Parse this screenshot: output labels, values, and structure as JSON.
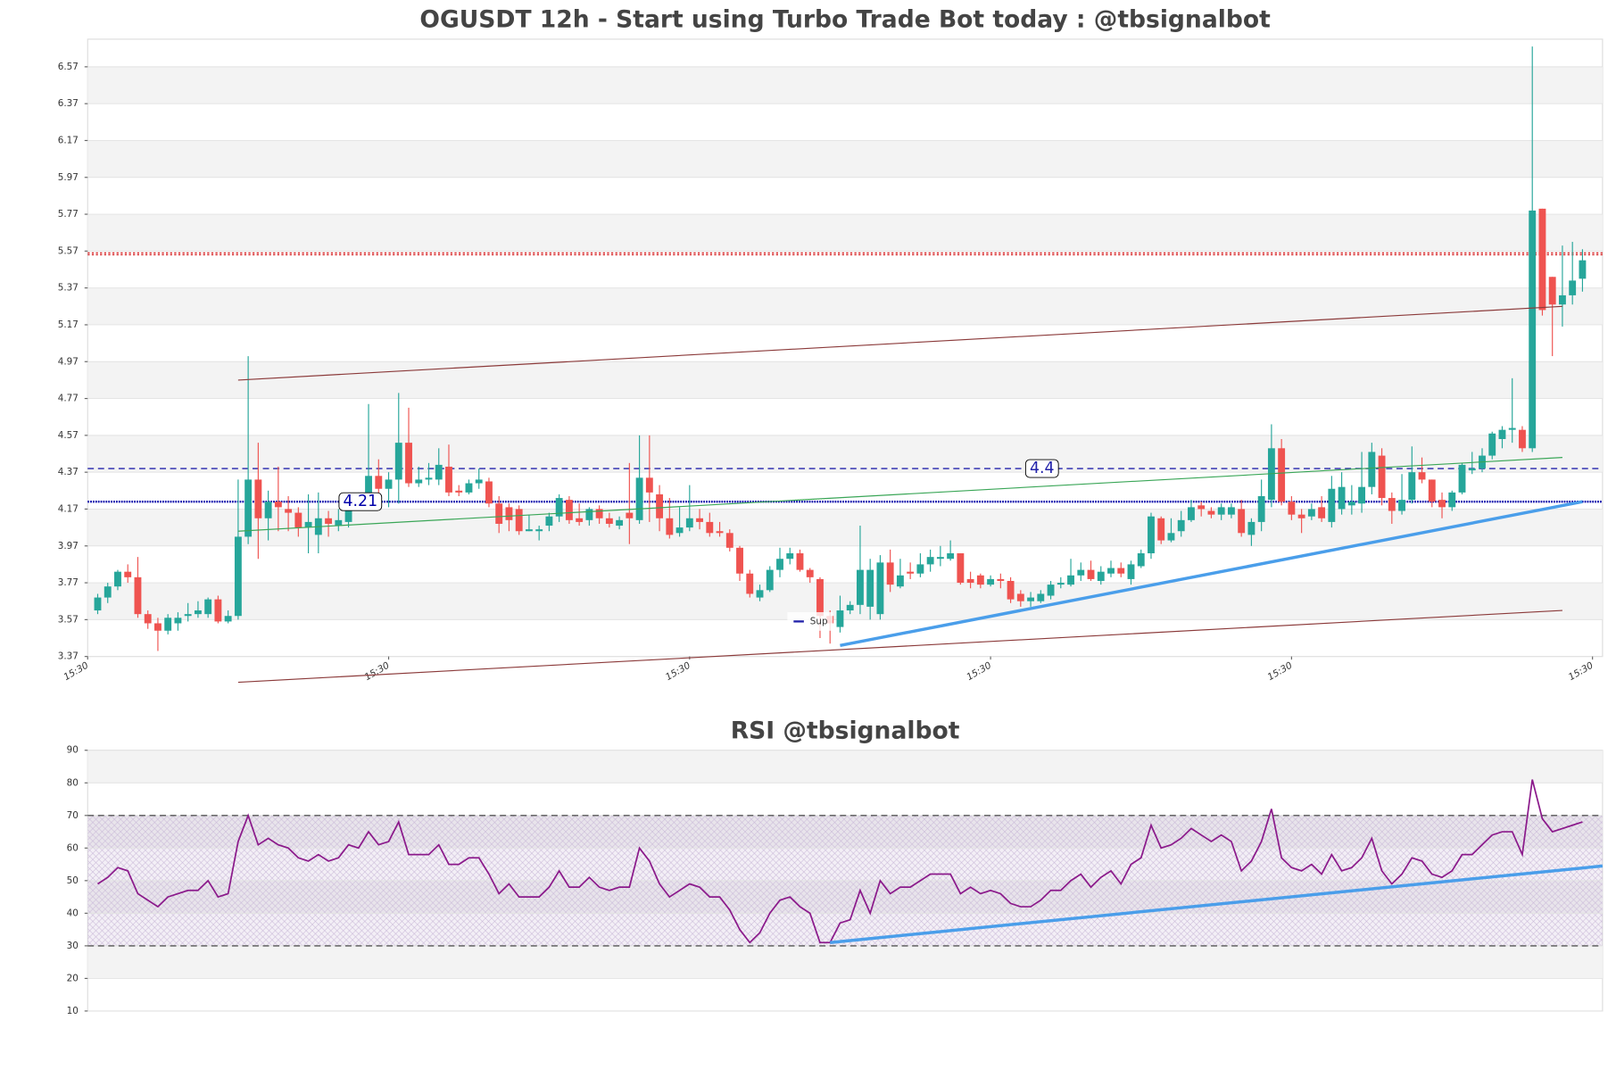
{
  "chart_data": [
    {
      "type": "candlestick",
      "title": "OGUSDT 12h - Start using Turbo Trade Bot today : @tbsignalbot",
      "xlim": [
        -1,
        150
      ],
      "xticks": [
        {
          "value": -1,
          "label": "15:30"
        },
        {
          "value": 29,
          "label": "15:30"
        },
        {
          "value": 59,
          "label": "15:30"
        },
        {
          "value": 89,
          "label": "15:30"
        },
        {
          "value": 119,
          "label": "15:30"
        },
        {
          "value": 149,
          "label": "15:30"
        }
      ],
      "ylim": [
        3.37,
        6.72
      ],
      "yticks": [
        3.37,
        3.57,
        3.77,
        3.97,
        4.17,
        4.37,
        4.57,
        4.77,
        4.97,
        5.17,
        5.37,
        5.57,
        5.77,
        5.97,
        6.17,
        6.37,
        6.57
      ],
      "grid": true,
      "up_color": "#26a69a",
      "down_color": "#ef5350",
      "open": [
        3.62,
        3.69,
        3.75,
        3.83,
        3.8,
        3.6,
        3.55,
        3.51,
        3.55,
        3.59,
        3.6,
        3.6,
        3.68,
        3.56,
        3.59,
        4.02,
        4.33,
        4.12,
        4.21,
        4.17,
        4.15,
        4.07,
        4.03,
        4.12,
        4.08,
        4.1,
        4.2,
        4.24,
        4.35,
        4.28,
        4.33,
        4.53,
        4.31,
        4.33,
        4.33,
        4.4,
        4.27,
        4.26,
        4.31,
        4.32,
        4.2,
        4.18,
        4.17,
        4.05,
        4.05,
        4.08,
        4.13,
        4.22,
        4.12,
        4.11,
        4.17,
        4.12,
        4.08,
        4.15,
        4.11,
        4.34,
        4.25,
        4.12,
        4.04,
        4.07,
        4.12,
        4.1,
        4.05,
        4.04,
        3.96,
        3.82,
        3.69,
        3.73,
        3.84,
        3.9,
        3.93,
        3.84,
        3.79,
        3.59,
        3.53,
        3.62,
        3.65,
        3.64,
        3.6,
        3.88,
        3.75,
        3.83,
        3.82,
        3.87,
        3.9,
        3.9,
        3.93,
        3.79,
        3.81,
        3.76,
        3.79,
        3.78,
        3.71,
        3.67,
        3.67,
        3.7,
        3.76,
        3.76,
        3.81,
        3.84,
        3.78,
        3.82,
        3.85,
        3.79,
        3.86,
        3.93,
        4.12,
        4.0,
        4.05,
        4.11,
        4.19,
        4.16,
        4.14,
        4.14,
        4.17,
        4.03,
        4.1,
        4.22,
        4.5,
        4.21,
        4.14,
        4.13,
        4.18,
        4.1,
        4.17,
        4.19,
        4.2,
        4.29,
        4.46,
        4.23,
        4.16,
        4.22,
        4.37,
        4.33,
        4.22,
        4.18,
        4.26,
        4.38,
        4.39,
        4.46,
        4.55,
        4.6,
        4.6,
        4.5,
        5.8,
        5.43,
        5.28,
        5.33,
        5.42
      ],
      "high": [
        3.71,
        3.77,
        3.84,
        3.87,
        3.91,
        3.62,
        3.58,
        3.6,
        3.61,
        3.66,
        3.67,
        3.69,
        3.7,
        3.62,
        4.33,
        5.0,
        4.53,
        4.27,
        4.4,
        4.24,
        4.18,
        4.25,
        4.26,
        4.16,
        4.17,
        4.23,
        4.26,
        4.74,
        4.44,
        4.37,
        4.8,
        4.72,
        4.4,
        4.42,
        4.5,
        4.52,
        4.3,
        4.33,
        4.39,
        4.34,
        4.24,
        4.2,
        4.19,
        4.14,
        4.08,
        4.15,
        4.25,
        4.24,
        4.2,
        4.18,
        4.19,
        4.15,
        4.13,
        4.42,
        4.57,
        4.57,
        4.3,
        4.23,
        4.18,
        4.3,
        4.17,
        4.15,
        4.1,
        4.06,
        3.97,
        3.84,
        3.76,
        3.86,
        3.96,
        3.96,
        3.95,
        3.85,
        3.8,
        3.62,
        3.7,
        3.67,
        4.08,
        3.9,
        3.92,
        3.95,
        3.9,
        3.88,
        3.93,
        3.95,
        3.97,
        4.0,
        3.93,
        3.83,
        3.82,
        3.81,
        3.82,
        3.8,
        3.73,
        3.72,
        3.73,
        3.78,
        3.8,
        3.9,
        3.88,
        3.89,
        3.86,
        3.89,
        3.88,
        3.89,
        3.95,
        4.15,
        4.13,
        4.12,
        4.16,
        4.22,
        4.21,
        4.18,
        4.2,
        4.2,
        4.22,
        4.12,
        4.33,
        4.63,
        4.55,
        4.24,
        4.17,
        4.2,
        4.24,
        4.35,
        4.37,
        4.3,
        4.48,
        4.53,
        4.5,
        4.26,
        4.36,
        4.51,
        4.45,
        4.33,
        4.26,
        4.27,
        4.42,
        4.48,
        4.5,
        4.59,
        4.62,
        4.88,
        4.62,
        6.68,
        5.8,
        5.43,
        5.6,
        5.62,
        5.58
      ],
      "low": [
        3.6,
        3.66,
        3.73,
        3.77,
        3.58,
        3.52,
        3.4,
        3.49,
        3.51,
        3.56,
        3.58,
        3.58,
        3.55,
        3.55,
        3.57,
        3.98,
        3.9,
        4.0,
        4.05,
        4.05,
        4.02,
        3.93,
        3.93,
        4.02,
        4.05,
        4.07,
        4.18,
        4.2,
        4.25,
        4.18,
        4.2,
        4.29,
        4.29,
        4.3,
        4.3,
        4.24,
        4.24,
        4.25,
        4.28,
        4.18,
        4.04,
        4.05,
        4.03,
        4.05,
        4.0,
        4.05,
        4.1,
        4.09,
        4.08,
        4.08,
        4.09,
        4.07,
        4.06,
        3.98,
        4.09,
        4.1,
        4.05,
        4.01,
        4.02,
        4.05,
        4.06,
        4.02,
        4.02,
        3.94,
        3.78,
        3.69,
        3.67,
        3.72,
        3.8,
        3.87,
        3.83,
        3.77,
        3.47,
        3.44,
        3.5,
        3.6,
        3.6,
        3.57,
        3.57,
        3.72,
        3.74,
        3.79,
        3.8,
        3.83,
        3.86,
        3.89,
        3.76,
        3.74,
        3.74,
        3.75,
        3.74,
        3.66,
        3.64,
        3.64,
        3.66,
        3.68,
        3.74,
        3.75,
        3.78,
        3.78,
        3.76,
        3.8,
        3.8,
        3.76,
        3.85,
        3.9,
        3.98,
        3.99,
        4.02,
        4.1,
        4.13,
        4.12,
        4.11,
        4.12,
        4.02,
        3.97,
        4.05,
        4.18,
        4.19,
        4.11,
        4.04,
        4.11,
        4.1,
        4.07,
        4.14,
        4.14,
        4.15,
        4.25,
        4.19,
        4.09,
        4.14,
        4.2,
        4.31,
        4.18,
        4.12,
        4.16,
        4.25,
        4.36,
        4.37,
        4.44,
        4.5,
        4.53,
        4.48,
        4.48,
        5.22,
        5.0,
        5.16,
        5.28,
        5.35
      ],
      "close": [
        3.69,
        3.75,
        3.83,
        3.8,
        3.6,
        3.55,
        3.51,
        3.58,
        3.58,
        3.6,
        3.62,
        3.68,
        3.56,
        3.59,
        4.02,
        4.33,
        4.12,
        4.21,
        4.18,
        4.15,
        4.07,
        4.1,
        4.12,
        4.09,
        4.11,
        4.2,
        4.24,
        4.35,
        4.28,
        4.33,
        4.53,
        4.31,
        4.33,
        4.34,
        4.41,
        4.26,
        4.26,
        4.31,
        4.33,
        4.2,
        4.09,
        4.11,
        4.05,
        4.06,
        4.06,
        4.13,
        4.23,
        4.11,
        4.1,
        4.17,
        4.12,
        4.09,
        4.11,
        4.12,
        4.34,
        4.26,
        4.12,
        4.03,
        4.07,
        4.12,
        4.1,
        4.04,
        4.04,
        3.96,
        3.82,
        3.71,
        3.73,
        3.84,
        3.9,
        3.93,
        3.84,
        3.8,
        3.59,
        3.55,
        3.62,
        3.65,
        3.84,
        3.84,
        3.88,
        3.76,
        3.81,
        3.82,
        3.87,
        3.91,
        3.91,
        3.93,
        3.77,
        3.77,
        3.76,
        3.79,
        3.78,
        3.68,
        3.67,
        3.69,
        3.71,
        3.76,
        3.77,
        3.81,
        3.84,
        3.79,
        3.83,
        3.85,
        3.82,
        3.87,
        3.93,
        4.13,
        4.0,
        4.04,
        4.11,
        4.18,
        4.17,
        4.14,
        4.18,
        4.18,
        4.04,
        4.1,
        4.24,
        4.5,
        4.21,
        4.14,
        4.12,
        4.17,
        4.12,
        4.28,
        4.29,
        4.21,
        4.29,
        4.48,
        4.23,
        4.16,
        4.22,
        4.37,
        4.33,
        4.21,
        4.18,
        4.26,
        4.41,
        4.39,
        4.46,
        4.58,
        4.6,
        4.61,
        4.5,
        5.79,
        5.25,
        5.28,
        5.33,
        5.41,
        5.52
      ],
      "levels": [
        {
          "value": 5.55,
          "color": "#d62728",
          "style": "dotted"
        },
        {
          "value": 5.56,
          "color": "#d62728",
          "style": "dotted"
        },
        {
          "value": 4.39,
          "color": "#2222aa",
          "style": "dashed",
          "label": "4.4",
          "name": "Sup"
        },
        {
          "value": 4.21,
          "color": "#0000aa",
          "style": "dotted-bold",
          "label": "4.21"
        }
      ],
      "lines": [
        {
          "x": [
            14,
            146
          ],
          "y": [
            4.87,
            5.27
          ],
          "color": "#8b3a3a",
          "width": 1
        },
        {
          "x": [
            14,
            146
          ],
          "y": [
            3.23,
            3.62
          ],
          "color": "#8b3a3a",
          "width": 1
        },
        {
          "x": [
            14,
            146
          ],
          "y": [
            4.05,
            4.45
          ],
          "color": "#3aa657",
          "width": 1
        },
        {
          "x": [
            74,
            148
          ],
          "y": [
            3.43,
            4.21
          ],
          "color": "#4a9eea",
          "width": 3
        }
      ],
      "legend": "lower center"
    },
    {
      "type": "line",
      "title": "RSI @tbsignalbot",
      "xlim": [
        -1,
        150
      ],
      "ylim": [
        10,
        90
      ],
      "yticks": [
        10,
        20,
        30,
        40,
        50,
        60,
        70,
        80,
        90
      ],
      "grid": true,
      "color": "#8b1a8b",
      "values": [
        49,
        51,
        54,
        53,
        46,
        44,
        42,
        45,
        46,
        47,
        47,
        50,
        45,
        46,
        62,
        70,
        61,
        63,
        61,
        60,
        57,
        56,
        58,
        56,
        57,
        61,
        60,
        65,
        61,
        62,
        68,
        58,
        58,
        58,
        61,
        55,
        55,
        57,
        57,
        52,
        46,
        49,
        45,
        45,
        45,
        48,
        53,
        48,
        48,
        51,
        48,
        47,
        48,
        48,
        60,
        56,
        49,
        45,
        47,
        49,
        48,
        45,
        45,
        41,
        35,
        31,
        34,
        40,
        44,
        45,
        42,
        40,
        31,
        31,
        37,
        38,
        47,
        40,
        50,
        46,
        48,
        48,
        50,
        52,
        52,
        52,
        46,
        48,
        46,
        47,
        46,
        43,
        42,
        42,
        44,
        47,
        47,
        50,
        52,
        48,
        51,
        53,
        49,
        55,
        57,
        67,
        60,
        61,
        63,
        66,
        64,
        62,
        64,
        62,
        53,
        56,
        62,
        72,
        57,
        54,
        53,
        55,
        52,
        58,
        53,
        54,
        57,
        63,
        53,
        49,
        52,
        57,
        56,
        52,
        51,
        53,
        58,
        58,
        61,
        64,
        65,
        65,
        58,
        81,
        69,
        65,
        66,
        67,
        68
      ],
      "levels": [
        {
          "value": 70,
          "color": "#555555",
          "style": "dashed"
        },
        {
          "value": 30,
          "color": "#555555",
          "style": "dashed"
        }
      ],
      "band_fill": "#9c7bb8",
      "lines": [
        {
          "x": [
            73,
            150
          ],
          "y": [
            31,
            54.5
          ],
          "color": "#4a9eea",
          "width": 3
        }
      ]
    }
  ]
}
